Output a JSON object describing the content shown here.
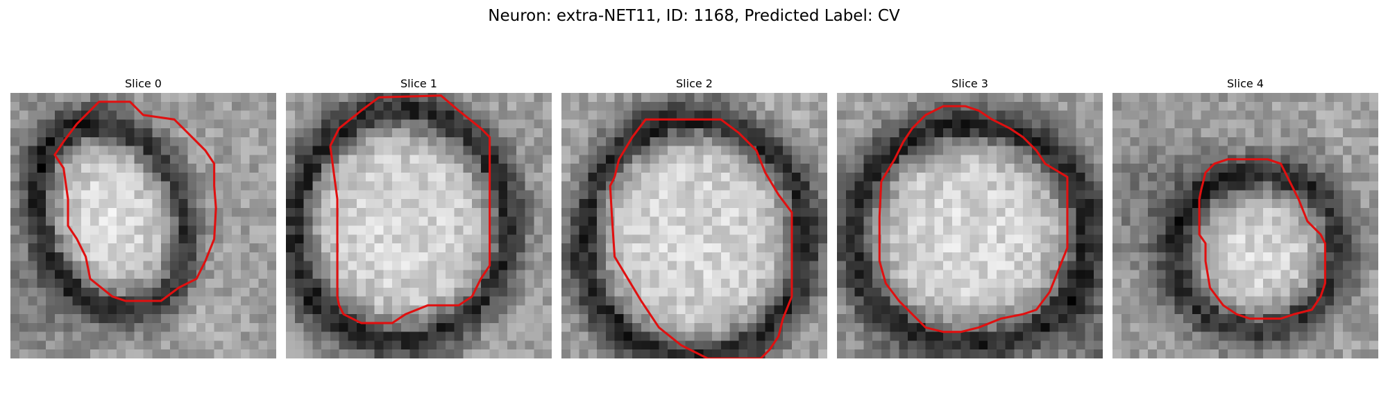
{
  "figure": {
    "title": "Neuron: extra-NET11, ID: 1168, Predicted Label: CV"
  },
  "contour_color": "#e01010",
  "slices": [
    {
      "label": "Slice 0"
    },
    {
      "label": "Slice 1"
    },
    {
      "label": "Slice 2"
    },
    {
      "label": "Slice 3"
    },
    {
      "label": "Slice 4"
    }
  ]
}
